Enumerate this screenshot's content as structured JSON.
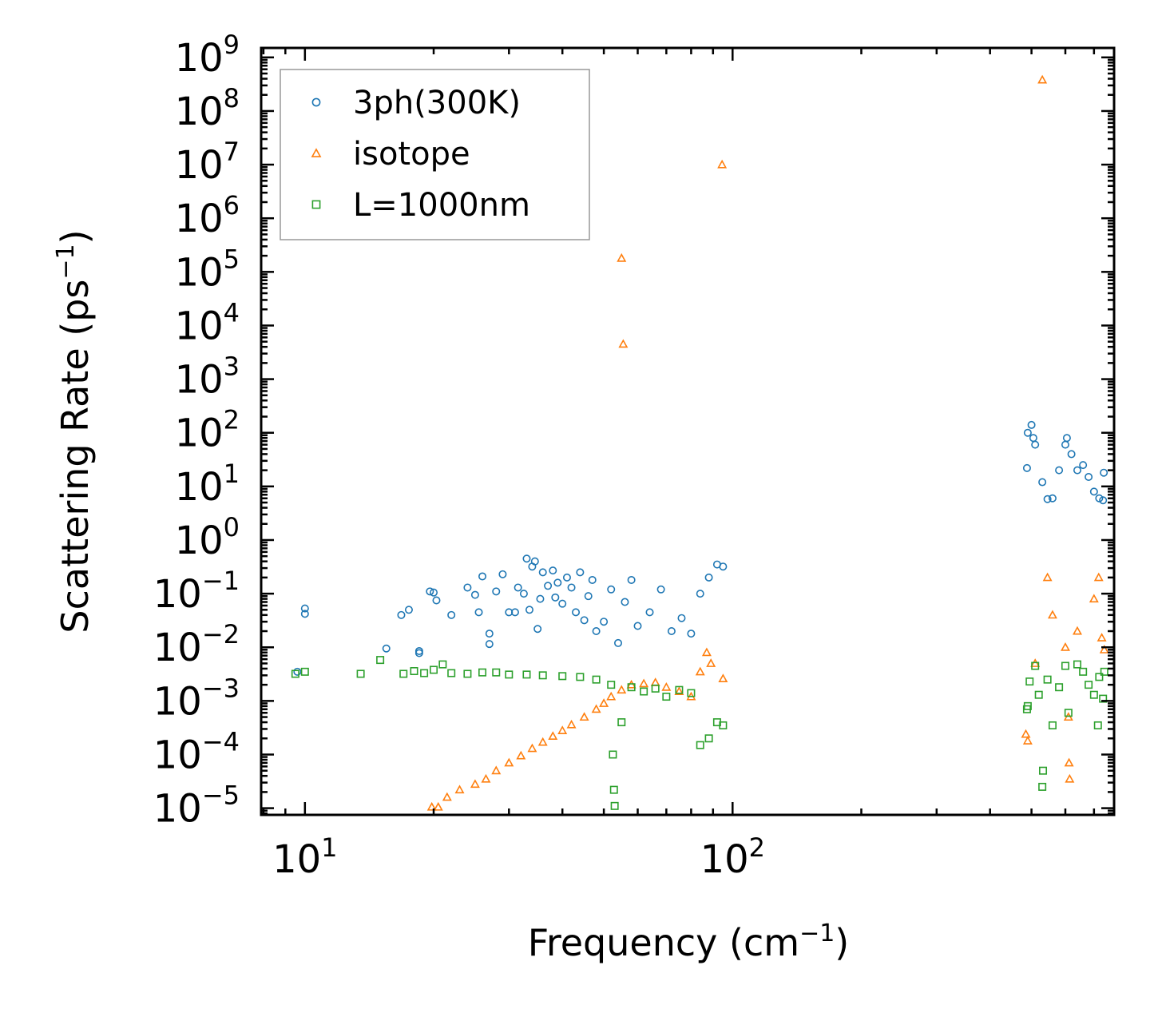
{
  "chart_data": {
    "type": "scatter",
    "title": "",
    "xlabel": "Frequency",
    "xlabel_unit_base": "cm",
    "xlabel_unit_exp": "−1",
    "ylabel": "Scattering Rate",
    "ylabel_unit_base": "ps",
    "ylabel_unit_exp": "−1",
    "xscale": "log",
    "yscale": "log",
    "xlim": [
      7.9,
      780
    ],
    "ylim": [
      7.5e-06,
      1500000000
    ],
    "xticks": [
      {
        "value": 10,
        "base": "10",
        "exp": "1"
      },
      {
        "value": 100,
        "base": "10",
        "exp": "2"
      }
    ],
    "yticks": [
      {
        "value": 1e-05,
        "base": "10",
        "exp": "−5"
      },
      {
        "value": 0.0001,
        "base": "10",
        "exp": "−4"
      },
      {
        "value": 0.001,
        "base": "10",
        "exp": "−3"
      },
      {
        "value": 0.01,
        "base": "10",
        "exp": "−2"
      },
      {
        "value": 0.1,
        "base": "10",
        "exp": "−1"
      },
      {
        "value": 1,
        "base": "10",
        "exp": "0"
      },
      {
        "value": 10,
        "base": "10",
        "exp": "1"
      },
      {
        "value": 100,
        "base": "10",
        "exp": "2"
      },
      {
        "value": 1000,
        "base": "10",
        "exp": "3"
      },
      {
        "value": 10000,
        "base": "10",
        "exp": "4"
      },
      {
        "value": 100000,
        "base": "10",
        "exp": "5"
      },
      {
        "value": 1000000,
        "base": "10",
        "exp": "6"
      },
      {
        "value": 10000000,
        "base": "10",
        "exp": "7"
      },
      {
        "value": 100000000,
        "base": "10",
        "exp": "8"
      },
      {
        "value": 1000000000,
        "base": "10",
        "exp": "9"
      }
    ],
    "legend_position": "top-left",
    "series": [
      {
        "name": "3ph(300K)",
        "marker": "circle",
        "color": "#1f77b4",
        "points": [
          [
            9.6,
            0.0035
          ],
          [
            10.0,
            0.053
          ],
          [
            10.0,
            0.042
          ],
          [
            15.5,
            0.0095
          ],
          [
            16.8,
            0.04
          ],
          [
            17.5,
            0.05
          ],
          [
            18.5,
            0.0085
          ],
          [
            18.5,
            0.0078
          ],
          [
            19.6,
            0.11
          ],
          [
            20.3,
            0.075
          ],
          [
            20.0,
            0.105
          ],
          [
            22.0,
            0.04
          ],
          [
            24.0,
            0.13
          ],
          [
            25.5,
            0.045
          ],
          [
            25.0,
            0.095
          ],
          [
            26.0,
            0.21
          ],
          [
            27.0,
            0.018
          ],
          [
            27.0,
            0.0115
          ],
          [
            28.0,
            0.11
          ],
          [
            29.0,
            0.23
          ],
          [
            30.0,
            0.045
          ],
          [
            31.0,
            0.045
          ],
          [
            31.5,
            0.13
          ],
          [
            32.5,
            0.1
          ],
          [
            33.0,
            0.45
          ],
          [
            33.5,
            0.05
          ],
          [
            34.0,
            0.32
          ],
          [
            34.5,
            0.4
          ],
          [
            35.0,
            0.022
          ],
          [
            35.5,
            0.08
          ],
          [
            36.0,
            0.25
          ],
          [
            37.0,
            0.14
          ],
          [
            38.0,
            0.27
          ],
          [
            38.5,
            0.085
          ],
          [
            39.0,
            0.16
          ],
          [
            40.0,
            0.065
          ],
          [
            41.0,
            0.2
          ],
          [
            42.0,
            0.13
          ],
          [
            43.0,
            0.045
          ],
          [
            44.0,
            0.25
          ],
          [
            45.0,
            0.032
          ],
          [
            46.0,
            0.09
          ],
          [
            47.0,
            0.18
          ],
          [
            48.0,
            0.02
          ],
          [
            50.0,
            0.03
          ],
          [
            52.0,
            0.12
          ],
          [
            54.0,
            0.012
          ],
          [
            56.0,
            0.07
          ],
          [
            58.0,
            0.18
          ],
          [
            60.0,
            0.025
          ],
          [
            64.0,
            0.045
          ],
          [
            68.0,
            0.12
          ],
          [
            72.0,
            0.02
          ],
          [
            76.0,
            0.035
          ],
          [
            80.0,
            0.018
          ],
          [
            84.0,
            0.1
          ],
          [
            88.0,
            0.2
          ],
          [
            92.0,
            0.35
          ],
          [
            95.0,
            0.32
          ],
          [
            488,
            22
          ],
          [
            490,
            100
          ],
          [
            500,
            140
          ],
          [
            505,
            80
          ],
          [
            510,
            60
          ],
          [
            530,
            12
          ],
          [
            545,
            5.8
          ],
          [
            560,
            6
          ],
          [
            580,
            20
          ],
          [
            600,
            60
          ],
          [
            605,
            80
          ],
          [
            620,
            40
          ],
          [
            640,
            20
          ],
          [
            660,
            25
          ],
          [
            680,
            15
          ],
          [
            700,
            8
          ],
          [
            720,
            6
          ],
          [
            735,
            5.5
          ],
          [
            738,
            18
          ]
        ]
      },
      {
        "name": "isotope",
        "marker": "triangle",
        "color": "#ff7f0e",
        "points": [
          [
            19.8,
            1.05e-05
          ],
          [
            20.5,
            1.05e-05
          ],
          [
            21.5,
            1.6e-05
          ],
          [
            23.0,
            2.2e-05
          ],
          [
            25.0,
            2.8e-05
          ],
          [
            26.5,
            3.5e-05
          ],
          [
            28.0,
            5e-05
          ],
          [
            30.0,
            7e-05
          ],
          [
            32.0,
            9.5e-05
          ],
          [
            34.0,
            0.00013
          ],
          [
            36.0,
            0.00017
          ],
          [
            38.0,
            0.00022
          ],
          [
            40.0,
            0.00028
          ],
          [
            42.0,
            0.00036
          ],
          [
            45.0,
            0.0005
          ],
          [
            48.0,
            0.0007
          ],
          [
            50.0,
            0.0009
          ],
          [
            52.0,
            0.0012
          ],
          [
            55.0,
            0.0016
          ],
          [
            58.0,
            0.002
          ],
          [
            62.0,
            0.0021
          ],
          [
            66.0,
            0.0022
          ],
          [
            70.0,
            0.0018
          ],
          [
            75.0,
            0.0015
          ],
          [
            80.0,
            0.0012
          ],
          [
            84.0,
            0.0035
          ],
          [
            87.0,
            0.008
          ],
          [
            89.0,
            0.005
          ],
          [
            95.0,
            0.0026
          ],
          [
            94.5,
            10000000
          ],
          [
            55.0,
            180000
          ],
          [
            55.5,
            4500
          ],
          [
            530,
            380000000
          ],
          [
            485,
            0.00024
          ],
          [
            490,
            0.00018
          ],
          [
            510,
            0.005
          ],
          [
            545,
            0.2
          ],
          [
            560,
            0.04
          ],
          [
            600,
            0.01
          ],
          [
            610,
            0.0005
          ],
          [
            612,
            7e-05
          ],
          [
            614,
            3.5e-05
          ],
          [
            640,
            0.02
          ],
          [
            700,
            0.08
          ],
          [
            718,
            0.2
          ],
          [
            730,
            0.015
          ],
          [
            740,
            0.009
          ]
        ]
      },
      {
        "name": "L=1000nm",
        "marker": "square",
        "color": "#2ca02c",
        "points": [
          [
            9.5,
            0.0032
          ],
          [
            10.0,
            0.0035
          ],
          [
            13.5,
            0.0032
          ],
          [
            15.0,
            0.0058
          ],
          [
            17.0,
            0.0032
          ],
          [
            18.0,
            0.0036
          ],
          [
            19.0,
            0.0033
          ],
          [
            20.0,
            0.0038
          ],
          [
            21.0,
            0.0048
          ],
          [
            22.0,
            0.0033
          ],
          [
            24.0,
            0.0032
          ],
          [
            26.0,
            0.0034
          ],
          [
            28.0,
            0.0034
          ],
          [
            30.0,
            0.0031
          ],
          [
            33.0,
            0.0031
          ],
          [
            36.0,
            0.003
          ],
          [
            40.0,
            0.0029
          ],
          [
            44.0,
            0.0028
          ],
          [
            48.0,
            0.0025
          ],
          [
            52.0,
            0.002
          ],
          [
            52.5,
            0.0001
          ],
          [
            52.8,
            2.2e-05
          ],
          [
            53.0,
            1.1e-05
          ],
          [
            55.0,
            0.0004
          ],
          [
            58.0,
            0.0018
          ],
          [
            62.0,
            0.0015
          ],
          [
            66.0,
            0.0017
          ],
          [
            70.0,
            0.0012
          ],
          [
            75.0,
            0.0016
          ],
          [
            80.0,
            0.0014
          ],
          [
            84.0,
            0.00015
          ],
          [
            88.0,
            0.0002
          ],
          [
            92.0,
            0.0004
          ],
          [
            95.0,
            0.00035
          ],
          [
            488,
            0.0007
          ],
          [
            490,
            0.0008
          ],
          [
            495,
            0.0023
          ],
          [
            510,
            0.0045
          ],
          [
            520,
            0.0013
          ],
          [
            530,
            2.5e-05
          ],
          [
            532,
            5e-05
          ],
          [
            545,
            0.0025
          ],
          [
            560,
            0.00035
          ],
          [
            580,
            0.0018
          ],
          [
            600,
            0.0045
          ],
          [
            610,
            0.0006
          ],
          [
            640,
            0.0048
          ],
          [
            660,
            0.0035
          ],
          [
            680,
            0.002
          ],
          [
            700,
            0.0013
          ],
          [
            715,
            0.00035
          ],
          [
            720,
            0.0028
          ],
          [
            735,
            0.0011
          ],
          [
            740,
            0.0035
          ]
        ]
      }
    ]
  }
}
